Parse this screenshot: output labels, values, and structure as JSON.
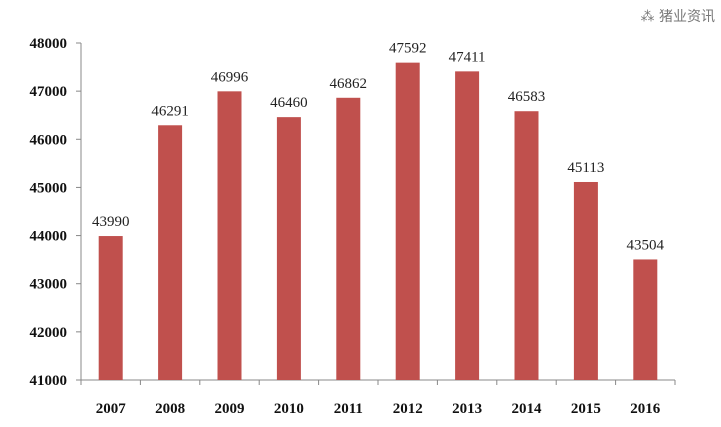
{
  "chart_data": {
    "type": "bar",
    "categories": [
      "2007",
      "2008",
      "2009",
      "2010",
      "2011",
      "2012",
      "2013",
      "2014",
      "2015",
      "2016"
    ],
    "values": [
      43990,
      46291,
      46996,
      46460,
      46862,
      47592,
      47411,
      46583,
      45113,
      43504
    ],
    "ylim": [
      41000,
      48000
    ],
    "yticks": [
      41000,
      42000,
      43000,
      44000,
      45000,
      46000,
      47000,
      48000
    ],
    "grid": false,
    "legend": "none",
    "bar_color": "#c0504d"
  },
  "watermark": "猪业资讯"
}
